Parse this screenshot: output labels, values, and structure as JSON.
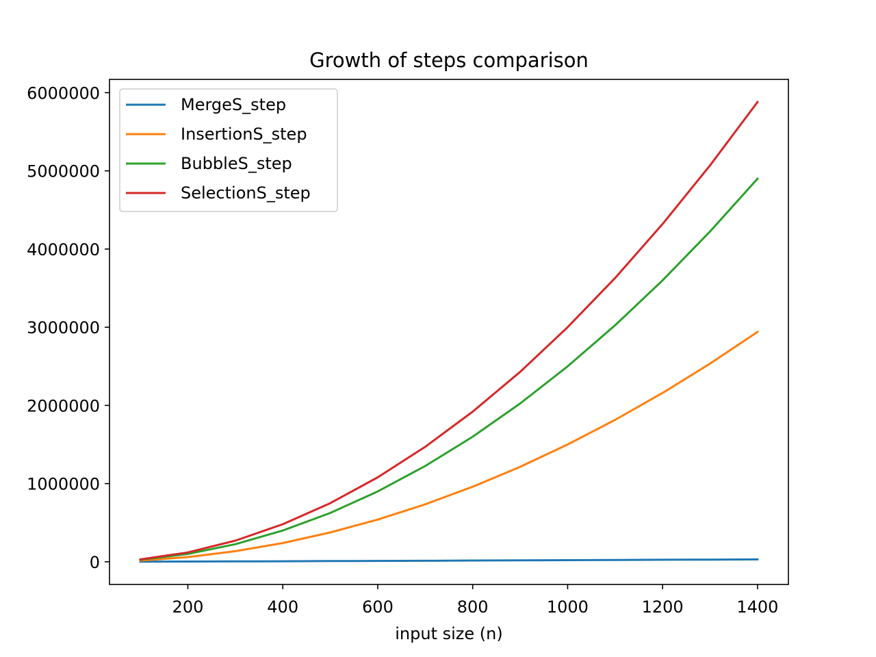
{
  "chart_data": {
    "type": "line",
    "title": "Growth of steps comparison",
    "xlabel": "input size (n)",
    "ylabel": "",
    "xlim": [
      35,
      1465
    ],
    "ylim": [
      -290000,
      6170000
    ],
    "xticks": [
      200,
      400,
      600,
      800,
      1000,
      1200,
      1400
    ],
    "yticks": [
      0,
      1000000,
      2000000,
      3000000,
      4000000,
      5000000,
      6000000
    ],
    "grid": false,
    "legend_position": "upper-left",
    "x": [
      100,
      200,
      300,
      400,
      500,
      600,
      700,
      800,
      900,
      1000,
      1100,
      1200,
      1300,
      1400
    ],
    "series": [
      {
        "name": "MergeS_step",
        "color": "#1f77b4",
        "values": [
          1300,
          3000,
          5000,
          7000,
          9000,
          11000,
          13000,
          16000,
          18000,
          21000,
          23000,
          26000,
          28000,
          30000
        ]
      },
      {
        "name": "InsertionS_step",
        "color": "#ff7f0e",
        "values": [
          15000,
          60000,
          135000,
          240000,
          375000,
          540000,
          735000,
          960000,
          1215000,
          1500000,
          1815000,
          2160000,
          2535000,
          2940000
        ]
      },
      {
        "name": "BubbleS_step",
        "color": "#2ca02c",
        "values": [
          25000,
          100000,
          225000,
          400000,
          625000,
          900000,
          1225000,
          1600000,
          2025000,
          2500000,
          3025000,
          3600000,
          4225000,
          4900000
        ]
      },
      {
        "name": "SelectionS_step",
        "color": "#d62728",
        "values": [
          30000,
          120000,
          270000,
          480000,
          750000,
          1080000,
          1470000,
          1920000,
          2430000,
          3000000,
          3630000,
          4320000,
          5070000,
          5880000
        ]
      }
    ]
  }
}
